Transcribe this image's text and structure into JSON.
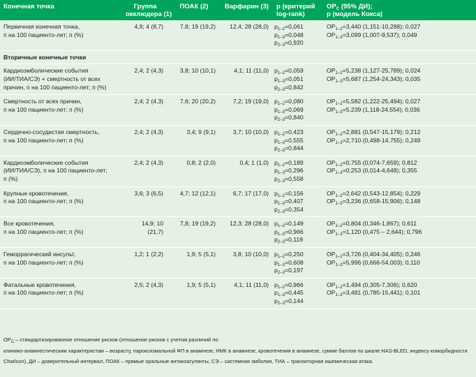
{
  "header": {
    "col1": "Конечная точка",
    "col2": [
      "Группа",
      "окклюдера (1)"
    ],
    "col3": "ПОАК (2)",
    "col4": "Варфарин (3)",
    "col5": [
      "р (критерий",
      "log-rank)"
    ],
    "col6_prefix": "ОР",
    "col6_sub": "С",
    "col6_suffix": " (95% ДИ);",
    "col6_line2": "р (модель Кокса)"
  },
  "section_label": "Вторичные конечные точки",
  "rows": [
    {
      "name": [
        "Первичная конечная точка,",
        "п на 100 пациенто-лет; п (%)"
      ],
      "occluder": "4,9; 4 (8,7)",
      "poak": "7,8; 19 (19,2)",
      "warfarin": "12,4; 28 (28,0)",
      "p": [
        {
          "s": "1–2",
          "v": "=0,061"
        },
        {
          "s": "1–3",
          "v": "=0,048"
        },
        {
          "s": "2–3",
          "v": "=0,920"
        }
      ],
      "hr": [
        {
          "s": "1–2",
          "v": "=3,440 (1,151-10,288); 0,027"
        },
        {
          "s": "1–3",
          "v": "=3,099 (1,007-9,537); 0,049"
        }
      ]
    },
    {
      "name": [
        "Кардиоэмболические события",
        "(ИИ/ТИА/СЭ) + смертность от всех",
        "причин, п на 100 пациенто-лет; п (%)"
      ],
      "occluder": "2,4; 2 (4,3)",
      "poak": "3,8; 10 (10,1)",
      "warfarin": "4,1; 11 (11,0)",
      "p": [
        {
          "s": "1–2",
          "v": "=0,059"
        },
        {
          "s": "1–3",
          "v": "=0,051"
        },
        {
          "s": "2–3",
          "v": "=0,842"
        }
      ],
      "hr": [
        {
          "s": "1–2",
          "v": "=5,238 (1,127-25,789); 0,024"
        },
        {
          "s": "1–3",
          "v": "=5,687 (1,254-24,343); 0,035"
        }
      ]
    },
    {
      "name": [
        "Смертность от всех причин,",
        "п на 100 пациенто-лет; п (%)"
      ],
      "occluder": "2,4; 2 (4,3)",
      "poak": "7,6; 20 (20,2)",
      "warfarin": "7,2; 19 (19,0)",
      "p": [
        {
          "s": "1–2",
          "v": "=0,080"
        },
        {
          "s": "1–3",
          "v": "=0,069"
        },
        {
          "s": "2–3",
          "v": "=0,840"
        }
      ],
      "hr": [
        {
          "s": "1–2",
          "v": "=5,582 (1,222-25,494); 0,027"
        },
        {
          "s": "1–3",
          "v": "=5,239 (1,118-24,554); 0,036"
        }
      ]
    },
    {
      "name": [
        "Сердечно-сосудистая смертность,",
        "п на 100 пациенто-лет; п (%)"
      ],
      "occluder": "2,4; 2 (4,3)",
      "poak": "3,4; 9 (9,1)",
      "warfarin": "3,7; 10 (10,0)",
      "p": [
        {
          "s": "1–2",
          "v": "=0,423"
        },
        {
          "s": "1–3",
          "v": "=0,555"
        },
        {
          "s": "2–3",
          "v": "=0,844"
        }
      ],
      "hr": [
        {
          "s": "1–2",
          "v": "=2,881 (0,547-15,179); 0,212"
        },
        {
          "s": "1–3",
          "v": "=2,710 (0,498-14,755); 0,249"
        }
      ]
    },
    {
      "name": [
        "Кардиоэмболические события",
        "(ИИ/ТИА/СЭ), п на 100 пациенто-лет;",
        "п (%)"
      ],
      "occluder": "2,4; 2 (4,3)",
      "poak": "0,8; 2 (2,0)",
      "warfarin": "0,4; 1 (1,0)",
      "p": [
        {
          "s": "1–2",
          "v": "=0,189"
        },
        {
          "s": "1–3",
          "v": "=0,296"
        },
        {
          "s": "2–3",
          "v": "=0,558"
        }
      ],
      "hr": [
        {
          "s": "1–2",
          "v": "=0,755 (0,074-7,659); 0,812"
        },
        {
          "s": "1–3",
          "v": "=0,253 (0,014-4,648); 0,355"
        }
      ]
    },
    {
      "name": [
        "Крупные кровотечения,",
        "п на 100 пациенто-лет; п (%)"
      ],
      "occluder": "3,6; 3 (6,5)",
      "poak": "4,7; 12 (12,1)",
      "warfarin": "6,7; 17 (17,0)",
      "p": [
        {
          "s": "1–2",
          "v": "=0,156"
        },
        {
          "s": "1–3",
          "v": "=0,407"
        },
        {
          "s": "2–3",
          "v": "=0,354"
        }
      ],
      "hr": [
        {
          "s": "1–2",
          "v": "=2,642 (0,543-12,854); 0,229"
        },
        {
          "s": "1–3",
          "v": "=3,236 (0,658-15,906); 0,148"
        }
      ]
    },
    {
      "name": [
        "Все кровотечения,",
        "п на 100 пациенто-лет; п (%)"
      ],
      "occluder": "14,9; 10 (21,7)",
      "poak": "7,8; 19 (19,2)",
      "warfarin": "12,3; 28 (28,0)",
      "p": [
        {
          "s": "1–2",
          "v": "=0,149"
        },
        {
          "s": "1–3",
          "v": "=0,966"
        },
        {
          "s": "2–3",
          "v": "=0,118"
        }
      ],
      "hr": [
        {
          "s": "1–2",
          "v": "=0,804 (0,346-1,867); 0,611"
        },
        {
          "s": "1–3",
          "v": "=1,120 (0,475 – 2,644); 0,796"
        }
      ]
    },
    {
      "name": [
        "Геморрагический инсульт,",
        "п на 100 пациенто-лет; п (%)"
      ],
      "occluder": "1,2; 1 (2,2)",
      "poak": "1,9; 5 (5,1)",
      "warfarin": "3,8; 10 (10,0)",
      "p": [
        {
          "s": "1–2",
          "v": "=0,250"
        },
        {
          "s": "1–3",
          "v": "=0,608"
        },
        {
          "s": "2–3",
          "v": "=0,197"
        }
      ],
      "hr": [
        {
          "s": "1–2",
          "v": "=3,726 (0,404-34,405); 0,246"
        },
        {
          "s": "1–3",
          "v": "=5,996 (0,666-54,003); 0,110"
        }
      ]
    },
    {
      "name": [
        "Фатальные кровотечения,",
        "п на 100 пациенто-лет; п (%)"
      ],
      "occluder": "2,5; 2 (4,3)",
      "poak": "1,9; 5 (5,1)",
      "warfarin": "4,1; 11 (11,0)",
      "p": [
        {
          "s": "1–2",
          "v": "=0,966"
        },
        {
          "s": "1–3",
          "v": "=0,445"
        },
        {
          "s": "2–3",
          "v": "=0,144"
        }
      ],
      "hr": [
        {
          "s": "1–2",
          "v": "=1,494 (0,305-7,306); 0,620"
        },
        {
          "s": "1–3",
          "v": "=3,481 (0,785-15,441); 0,101"
        }
      ]
    }
  ],
  "p_prefix": "p",
  "hr_prefix": "ОР",
  "footnote": {
    "line1_prefix": "ОР",
    "line1_sub": "С",
    "line1_rest": " – стандартизированное отношение рисков (отношение рисков с учетом различий по",
    "line2": "клинико-анамнестическим характеристам – возрасту, пароксизмальной ФП в анамнезе, НМК в анамнезе, кровотечения в анамнезе, сумме баллов по шкале HAS-BLED, индексу коморбидности",
    "line3": "Charlson), ДИ – доверительный интервал, ПОАК – прямые оральные антикоагулянты, СЭ – системная эмболия, ТИА – транзиторная ишемическая атака."
  }
}
